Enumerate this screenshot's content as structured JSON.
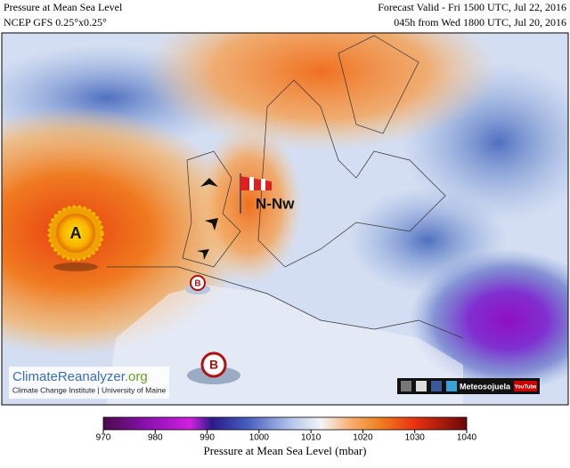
{
  "header": {
    "title": "Pressure at Mean Sea Level",
    "model": "NCEP GFS 0.25°x0.25°",
    "valid": "Forecast Valid - Fri 1500 UTC, Jul 22, 2016",
    "lead": "045h from Wed 1800 UTC, Jul 20, 2016"
  },
  "map": {
    "wind_label": "N-Nw",
    "high_label": "A",
    "low_labels": [
      "B",
      "B"
    ]
  },
  "branding": {
    "site_name": "ClimateReanalyzer",
    "site_tld": ".org",
    "institute": "Climate Change Institute | University of Maine",
    "channel": "Meteosojuela",
    "youtube": "YouTube"
  },
  "colorbar": {
    "range": [
      970,
      1040
    ],
    "ticks": [
      970,
      980,
      990,
      1000,
      1010,
      1020,
      1030,
      1040
    ],
    "label": "Pressure at Mean Sea Level (mbar)"
  }
}
